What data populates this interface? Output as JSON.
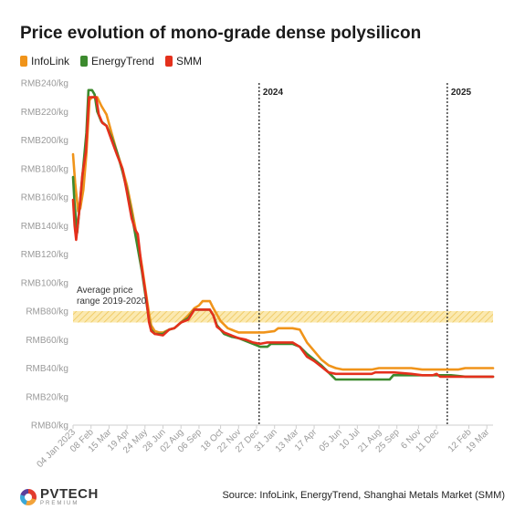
{
  "title": "Price evolution of mono-grade dense polysilicon",
  "legend": [
    {
      "name": "InfoLink",
      "color": "#f0941a"
    },
    {
      "name": "EnergyTrend",
      "color": "#3c8a2e"
    },
    {
      "name": "SMM",
      "color": "#e4301c"
    }
  ],
  "source": "Source: InfoLink, EnergyTrend, Shanghai Metals Market (SMM)",
  "logo": {
    "name": "PVTECH",
    "sub": "PREMIUM"
  },
  "chart_data": {
    "type": "line",
    "title": "Price evolution of mono-grade dense polysilicon",
    "xlabel": "",
    "ylabel": "",
    "y_unit_prefix": "RMB",
    "y_unit_suffix": "/kg",
    "ylim": [
      0,
      240
    ],
    "y_ticks": [
      0,
      20,
      40,
      60,
      80,
      100,
      120,
      140,
      160,
      180,
      200,
      220,
      240
    ],
    "x_range": [
      "2023-01-04",
      "2025-03-31"
    ],
    "x_ticks": [
      {
        "date": "2023-01-04",
        "label": "04 Jan 2023"
      },
      {
        "date": "2023-02-08",
        "label": "08 Feb"
      },
      {
        "date": "2023-03-15",
        "label": "15 Mar"
      },
      {
        "date": "2023-04-19",
        "label": "19 Apr"
      },
      {
        "date": "2023-05-24",
        "label": "24 May"
      },
      {
        "date": "2023-06-28",
        "label": "28 Jun"
      },
      {
        "date": "2023-08-02",
        "label": "02 Aug"
      },
      {
        "date": "2023-09-06",
        "label": "06 Sep"
      },
      {
        "date": "2023-10-18",
        "label": "18 Oct"
      },
      {
        "date": "2023-11-22",
        "label": "22 Nov"
      },
      {
        "date": "2023-12-27",
        "label": "27 Dec"
      },
      {
        "date": "2024-01-31",
        "label": "31 Jan"
      },
      {
        "date": "2024-03-13",
        "label": "13 Mar"
      },
      {
        "date": "2024-04-17",
        "label": "17 Apr"
      },
      {
        "date": "2024-06-05",
        "label": "05 Jun"
      },
      {
        "date": "2024-07-10",
        "label": "10 Jul"
      },
      {
        "date": "2024-08-21",
        "label": "21 Aug"
      },
      {
        "date": "2024-09-25",
        "label": "25 Sep"
      },
      {
        "date": "2024-11-06",
        "label": "6 Nov"
      },
      {
        "date": "2024-12-11",
        "label": "11 Dec"
      },
      {
        "date": "2025-02-12",
        "label": "12 Feb"
      },
      {
        "date": "2025-03-19",
        "label": "19 Mar"
      }
    ],
    "year_markers": [
      {
        "date": "2024-01-01",
        "label": "2024"
      },
      {
        "date": "2025-01-01",
        "label": "2025"
      }
    ],
    "band": {
      "y0": 72,
      "y1": 80,
      "label_lines": [
        "Average price",
        "range 2019-2020"
      ],
      "color": "#f2c94c"
    },
    "grid": false,
    "legend_position": "top-left",
    "series": [
      {
        "name": "InfoLink",
        "color": "#f0941a",
        "points": [
          [
            "2023-01-04",
            190
          ],
          [
            "2023-01-08",
            170
          ],
          [
            "2023-01-14",
            150
          ],
          [
            "2023-01-18",
            152
          ],
          [
            "2023-01-24",
            165
          ],
          [
            "2023-01-30",
            190
          ],
          [
            "2023-02-05",
            228
          ],
          [
            "2023-02-10",
            230
          ],
          [
            "2023-02-20",
            230
          ],
          [
            "2023-02-28",
            224
          ],
          [
            "2023-03-10",
            218
          ],
          [
            "2023-03-20",
            205
          ],
          [
            "2023-03-30",
            192
          ],
          [
            "2023-04-10",
            180
          ],
          [
            "2023-04-19",
            168
          ],
          [
            "2023-04-28",
            152
          ],
          [
            "2023-05-08",
            133
          ],
          [
            "2023-05-18",
            112
          ],
          [
            "2023-05-26",
            92
          ],
          [
            "2023-06-01",
            78
          ],
          [
            "2023-06-05",
            70
          ],
          [
            "2023-06-12",
            66
          ],
          [
            "2023-06-20",
            65
          ],
          [
            "2023-06-28",
            65
          ],
          [
            "2023-07-10",
            67
          ],
          [
            "2023-07-20",
            68
          ],
          [
            "2023-08-02",
            72
          ],
          [
            "2023-08-16",
            77
          ],
          [
            "2023-08-28",
            82
          ],
          [
            "2023-09-06",
            84
          ],
          [
            "2023-09-13",
            87
          ],
          [
            "2023-09-27",
            87
          ],
          [
            "2023-10-04",
            82
          ],
          [
            "2023-10-18",
            73
          ],
          [
            "2023-11-01",
            68
          ],
          [
            "2023-11-15",
            66
          ],
          [
            "2023-11-22",
            65
          ],
          [
            "2023-12-13",
            65
          ],
          [
            "2023-12-27",
            65
          ],
          [
            "2024-01-10",
            65
          ],
          [
            "2024-01-31",
            66
          ],
          [
            "2024-02-07",
            68
          ],
          [
            "2024-03-06",
            68
          ],
          [
            "2024-03-20",
            67
          ],
          [
            "2024-04-03",
            58
          ],
          [
            "2024-04-17",
            52
          ],
          [
            "2024-05-01",
            46
          ],
          [
            "2024-05-15",
            42
          ],
          [
            "2024-05-29",
            40
          ],
          [
            "2024-06-12",
            39
          ],
          [
            "2024-07-10",
            39
          ],
          [
            "2024-08-07",
            39
          ],
          [
            "2024-08-21",
            40
          ],
          [
            "2024-09-25",
            40
          ],
          [
            "2024-10-23",
            40
          ],
          [
            "2024-11-13",
            39
          ],
          [
            "2024-12-04",
            39
          ],
          [
            "2024-12-25",
            39
          ],
          [
            "2025-01-22",
            39
          ],
          [
            "2025-02-05",
            40
          ],
          [
            "2025-03-31",
            40
          ]
        ]
      },
      {
        "name": "EnergyTrend",
        "color": "#3c8a2e",
        "points": [
          [
            "2023-01-04",
            174
          ],
          [
            "2023-01-07",
            155
          ],
          [
            "2023-01-12",
            135
          ],
          [
            "2023-01-18",
            158
          ],
          [
            "2023-01-24",
            182
          ],
          [
            "2023-01-30",
            205
          ],
          [
            "2023-02-03",
            235
          ],
          [
            "2023-02-10",
            235
          ],
          [
            "2023-02-15",
            232
          ],
          [
            "2023-02-20",
            220
          ],
          [
            "2023-02-28",
            213
          ],
          [
            "2023-03-10",
            210
          ],
          [
            "2023-03-20",
            202
          ],
          [
            "2023-03-30",
            192
          ],
          [
            "2023-04-10",
            178
          ],
          [
            "2023-04-19",
            165
          ],
          [
            "2023-04-28",
            148
          ],
          [
            "2023-05-08",
            128
          ],
          [
            "2023-05-18",
            108
          ],
          [
            "2023-05-26",
            88
          ],
          [
            "2023-06-01",
            73
          ],
          [
            "2023-06-05",
            67
          ],
          [
            "2023-06-12",
            64
          ],
          [
            "2023-06-28",
            64
          ],
          [
            "2023-07-10",
            67
          ],
          [
            "2023-07-20",
            68
          ],
          [
            "2023-08-02",
            72
          ],
          [
            "2023-08-16",
            75
          ],
          [
            "2023-08-28",
            81
          ],
          [
            "2023-09-06",
            81
          ],
          [
            "2023-09-27",
            81
          ],
          [
            "2023-10-04",
            77
          ],
          [
            "2023-10-11",
            70
          ],
          [
            "2023-10-25",
            64
          ],
          [
            "2023-11-08",
            62
          ],
          [
            "2023-11-22",
            61
          ],
          [
            "2023-12-06",
            59
          ],
          [
            "2023-12-20",
            57
          ],
          [
            "2024-01-03",
            55
          ],
          [
            "2024-01-17",
            55
          ],
          [
            "2024-01-24",
            57
          ],
          [
            "2024-02-07",
            57
          ],
          [
            "2024-03-06",
            57
          ],
          [
            "2024-03-20",
            55
          ],
          [
            "2024-04-03",
            50
          ],
          [
            "2024-04-17",
            46
          ],
          [
            "2024-05-01",
            42
          ],
          [
            "2024-05-15",
            37
          ],
          [
            "2024-05-29",
            32
          ],
          [
            "2024-06-12",
            32
          ],
          [
            "2024-07-24",
            32
          ],
          [
            "2024-08-21",
            32
          ],
          [
            "2024-09-11",
            32
          ],
          [
            "2024-09-18",
            35
          ],
          [
            "2024-10-23",
            35
          ],
          [
            "2024-11-27",
            35
          ],
          [
            "2024-12-18",
            35
          ],
          [
            "2025-01-08",
            35
          ],
          [
            "2025-02-05",
            34
          ],
          [
            "2025-03-31",
            34
          ]
        ]
      },
      {
        "name": "SMM",
        "color": "#e4301c",
        "points": [
          [
            "2023-01-04",
            158
          ],
          [
            "2023-01-07",
            140
          ],
          [
            "2023-01-10",
            130
          ],
          [
            "2023-01-16",
            150
          ],
          [
            "2023-01-22",
            175
          ],
          [
            "2023-01-29",
            192
          ],
          [
            "2023-02-04",
            230
          ],
          [
            "2023-02-08",
            230
          ],
          [
            "2023-02-18",
            230
          ],
          [
            "2023-02-23",
            218
          ],
          [
            "2023-03-02",
            212
          ],
          [
            "2023-03-10",
            210
          ],
          [
            "2023-03-20",
            200
          ],
          [
            "2023-03-30",
            190
          ],
          [
            "2023-04-10",
            180
          ],
          [
            "2023-04-19",
            163
          ],
          [
            "2023-04-28",
            145
          ],
          [
            "2023-05-05",
            137
          ],
          [
            "2023-05-10",
            134
          ],
          [
            "2023-05-17",
            112
          ],
          [
            "2023-05-26",
            90
          ],
          [
            "2023-06-01",
            72
          ],
          [
            "2023-06-05",
            66
          ],
          [
            "2023-06-12",
            64
          ],
          [
            "2023-06-28",
            63
          ],
          [
            "2023-07-10",
            67
          ],
          [
            "2023-07-20",
            68
          ],
          [
            "2023-08-02",
            72
          ],
          [
            "2023-08-16",
            74
          ],
          [
            "2023-08-28",
            81
          ],
          [
            "2023-09-06",
            81
          ],
          [
            "2023-09-27",
            81
          ],
          [
            "2023-10-04",
            77
          ],
          [
            "2023-10-11",
            69
          ],
          [
            "2023-10-25",
            65
          ],
          [
            "2023-11-08",
            63
          ],
          [
            "2023-11-22",
            61
          ],
          [
            "2023-12-06",
            60
          ],
          [
            "2023-12-20",
            58
          ],
          [
            "2024-01-03",
            57
          ],
          [
            "2024-01-17",
            58
          ],
          [
            "2024-02-07",
            58
          ],
          [
            "2024-03-06",
            58
          ],
          [
            "2024-03-20",
            55
          ],
          [
            "2024-04-03",
            48
          ],
          [
            "2024-04-17",
            45
          ],
          [
            "2024-05-01",
            41
          ],
          [
            "2024-05-15",
            37
          ],
          [
            "2024-05-29",
            36
          ],
          [
            "2024-06-12",
            36
          ],
          [
            "2024-07-24",
            36
          ],
          [
            "2024-08-07",
            36
          ],
          [
            "2024-08-14",
            37
          ],
          [
            "2024-09-18",
            37
          ],
          [
            "2024-10-23",
            36
          ],
          [
            "2024-11-13",
            35
          ],
          [
            "2024-12-04",
            35
          ],
          [
            "2024-12-11",
            36
          ],
          [
            "2024-12-18",
            34
          ],
          [
            "2025-01-22",
            34
          ],
          [
            "2025-03-31",
            34
          ]
        ]
      }
    ]
  }
}
